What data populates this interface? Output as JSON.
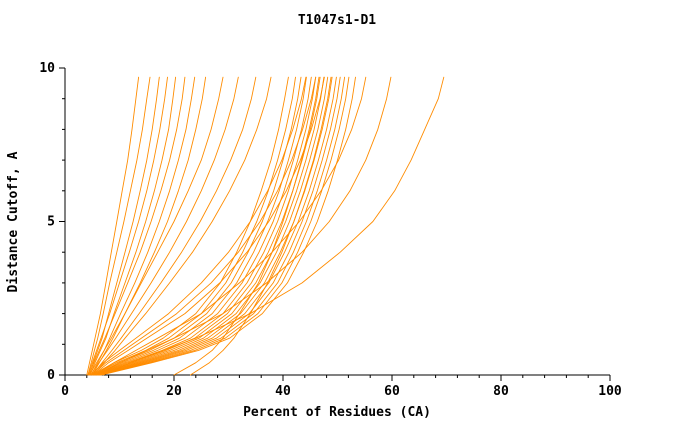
{
  "chart_data": {
    "type": "line",
    "title": "T1047s1-D1",
    "xlabel": "Percent of Residues (CA)",
    "ylabel": "Distance Cutoff, A",
    "xlim": [
      0,
      100
    ],
    "ylim": [
      0,
      10
    ],
    "x_ticks": [
      0,
      20,
      40,
      60,
      80,
      100
    ],
    "y_ticks": [
      0,
      5,
      10
    ],
    "x_minor_step": 4,
    "y_minor_step": 1,
    "grid": false,
    "legend": "none",
    "line_color": "#ff8c00",
    "axis_color": "#000000",
    "y_samples": [
      0,
      0.4,
      0.8,
      1.2,
      2,
      3,
      4,
      5,
      6,
      7,
      8,
      9,
      9.7
    ],
    "series": [
      [
        4.0,
        4.5,
        5.0,
        5.5,
        6.5,
        7.5,
        8.5,
        9.5,
        10.5,
        11.5,
        12.3,
        13.0,
        13.5
      ],
      [
        4.2,
        4.8,
        5.4,
        6.0,
        7.0,
        8.2,
        9.5,
        10.8,
        12.0,
        13.2,
        14.2,
        15.0,
        15.6
      ],
      [
        4.5,
        5.2,
        6.0,
        6.8,
        8.0,
        9.5,
        11.0,
        12.5,
        13.8,
        15.0,
        16.0,
        16.8,
        17.3
      ],
      [
        4.3,
        5.0,
        5.8,
        6.6,
        8.2,
        10.0,
        11.8,
        13.5,
        15.0,
        16.3,
        17.4,
        18.3,
        18.8
      ],
      [
        4.6,
        5.5,
        6.5,
        7.5,
        9.0,
        11.0,
        13.0,
        14.8,
        16.4,
        17.8,
        19.0,
        19.8,
        20.3
      ],
      [
        4.4,
        5.3,
        6.3,
        7.3,
        9.2,
        11.5,
        13.8,
        15.8,
        17.6,
        19.2,
        20.5,
        21.5,
        22.0
      ],
      [
        4.8,
        6.0,
        7.2,
        8.2,
        10.2,
        12.8,
        15.2,
        17.3,
        19.2,
        20.8,
        22.2,
        23.2,
        23.8
      ],
      [
        5.0,
        6.3,
        7.6,
        8.8,
        11.0,
        13.8,
        16.4,
        18.8,
        20.8,
        22.6,
        24.0,
        25.2,
        25.8
      ],
      [
        4.5,
        5.8,
        7.2,
        8.5,
        11.0,
        14.0,
        17.0,
        20.0,
        22.6,
        25.0,
        26.8,
        28.2,
        29.0
      ],
      [
        4.7,
        6.2,
        7.8,
        9.3,
        12.2,
        15.8,
        19.2,
        22.3,
        25.0,
        27.4,
        29.4,
        31.0,
        31.8
      ],
      [
        5.0,
        6.8,
        8.6,
        10.3,
        13.6,
        17.6,
        21.4,
        24.8,
        27.8,
        30.4,
        32.6,
        34.2,
        35.0
      ],
      [
        5.2,
        7.2,
        9.2,
        11.0,
        14.8,
        19.2,
        23.4,
        27.0,
        30.2,
        33.0,
        35.2,
        37.0,
        37.8
      ],
      [
        5.0,
        9.0,
        14.0,
        18.0,
        24.0,
        28.5,
        31.5,
        34.0,
        36.0,
        37.8,
        39.2,
        40.3,
        41.0
      ],
      [
        5.2,
        9.5,
        14.8,
        19.0,
        25.0,
        29.5,
        32.6,
        35.2,
        37.3,
        39.0,
        40.5,
        41.7,
        42.3
      ],
      [
        5.4,
        10.0,
        15.5,
        20.0,
        26.0,
        30.5,
        33.6,
        36.2,
        38.3,
        40.0,
        41.5,
        42.7,
        43.3
      ],
      [
        5.5,
        10.5,
        16.2,
        21.0,
        27.0,
        31.5,
        34.6,
        37.2,
        39.3,
        41.0,
        42.5,
        43.7,
        44.3
      ],
      [
        5.6,
        11.0,
        17.0,
        22.0,
        28.0,
        32.5,
        35.6,
        38.2,
        40.2,
        41.9,
        43.4,
        44.6,
        45.2
      ],
      [
        5.7,
        11.5,
        17.8,
        23.0,
        29.0,
        33.4,
        36.5,
        39.0,
        41.0,
        42.7,
        44.2,
        45.4,
        46.0
      ],
      [
        5.8,
        12.0,
        18.5,
        23.8,
        29.8,
        34.2,
        37.3,
        39.8,
        41.8,
        43.5,
        45.0,
        46.2,
        46.8
      ],
      [
        5.9,
        12.5,
        19.2,
        24.6,
        30.6,
        35.0,
        38.0,
        40.5,
        42.5,
        44.2,
        45.7,
        46.9,
        47.5
      ],
      [
        6.0,
        13.0,
        20.0,
        25.4,
        31.4,
        35.8,
        38.8,
        41.2,
        43.2,
        44.9,
        46.4,
        47.6,
        48.2
      ],
      [
        6.1,
        13.5,
        20.8,
        26.2,
        32.2,
        36.6,
        39.5,
        42.0,
        44.0,
        45.7,
        47.2,
        48.4,
        49.0
      ],
      [
        6.2,
        14.0,
        21.5,
        27.0,
        33.0,
        37.4,
        40.3,
        42.8,
        44.8,
        46.5,
        48.0,
        49.2,
        49.8
      ],
      [
        6.3,
        14.5,
        22.2,
        27.8,
        33.8,
        38.2,
        41.1,
        43.5,
        45.5,
        47.2,
        48.7,
        49.9,
        50.5
      ],
      [
        6.4,
        15.0,
        23.0,
        28.6,
        34.6,
        39.0,
        41.9,
        44.3,
        46.3,
        48.0,
        49.5,
        50.7,
        51.3
      ],
      [
        6.5,
        15.5,
        23.8,
        29.4,
        35.4,
        39.8,
        42.7,
        45.1,
        47.1,
        48.8,
        50.3,
        51.5,
        52.1
      ],
      [
        4.8,
        7.0,
        10.0,
        13.0,
        19.0,
        25.0,
        30.0,
        34.0,
        37.2,
        39.8,
        41.8,
        43.4,
        44.2
      ],
      [
        5.0,
        7.5,
        10.8,
        14.0,
        20.5,
        26.8,
        31.8,
        35.8,
        39.0,
        41.6,
        43.6,
        45.2,
        46.0
      ],
      [
        5.2,
        8.0,
        11.6,
        15.0,
        22.0,
        28.4,
        33.4,
        37.4,
        40.6,
        43.2,
        45.2,
        46.8,
        47.6
      ],
      [
        6.6,
        16.0,
        24.5,
        30.2,
        36.2,
        40.8,
        43.8,
        46.3,
        48.3,
        50.0,
        51.5,
        52.7,
        53.3
      ],
      [
        5.5,
        9.0,
        13.0,
        17.0,
        25.0,
        32.0,
        38.0,
        43.0,
        47.0,
        50.2,
        52.6,
        54.4,
        55.2
      ],
      [
        6.0,
        10.0,
        15.0,
        20.0,
        29.0,
        37.0,
        43.5,
        48.5,
        52.3,
        55.2,
        57.4,
        59.0,
        59.8
      ],
      [
        7.0,
        12.0,
        18.0,
        24.0,
        34.0,
        43.5,
        50.5,
        56.5,
        60.5,
        63.5,
        66.0,
        68.5,
        69.5
      ],
      [
        20.0,
        24.0,
        27.0,
        29.0,
        32.0,
        35.5,
        38.0,
        40.0,
        41.8,
        43.4,
        44.8,
        46.0,
        46.6
      ],
      [
        23.0,
        26.5,
        29.0,
        31.0,
        34.0,
        37.2,
        39.8,
        42.0,
        43.9,
        45.6,
        47.0,
        48.2,
        48.8
      ]
    ]
  }
}
